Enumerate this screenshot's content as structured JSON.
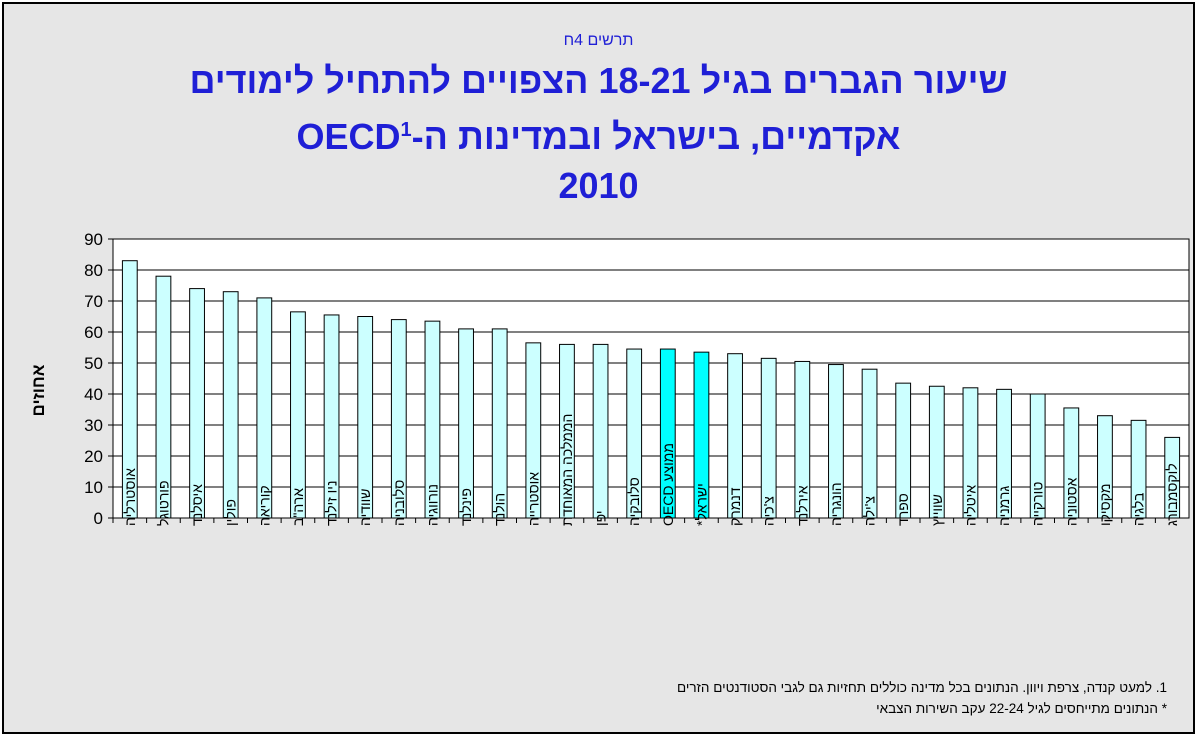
{
  "figure_label": "תרשים 4ח",
  "title_line1": "שיעור הגברים בגיל 18-21 הצפויים להתחיל לימודים",
  "title_line2": "אקדמיים, בישראל ובמדינות ה-OECD",
  "title_sup": "1",
  "title_line3": "2010",
  "note1": "1. למעט קנדה, צרפת ויוון.  הנתונים בכל מדינה כוללים תחזיות גם לגבי הסטודנטים הזרים",
  "note2": "* הנתונים מתייחסים לגיל  22-24 עקב השירות הצבאי",
  "colors": {
    "bar_default": "#ccffff",
    "bar_highlight": "#00ffff",
    "bar_stroke": "#000000",
    "plot_bg": "#ffffff",
    "title": "#1f1fd6"
  },
  "chart_data": {
    "type": "bar",
    "title": "שיעור הגברים בגיל 18-21 הצפויים להתחיל לימודים אקדמיים, בישראל ובמדינות ה-OECD 2010",
    "xlabel": "",
    "ylabel": "אחוזים",
    "ylim": [
      0,
      90
    ],
    "yticks": [
      0,
      10,
      20,
      30,
      40,
      50,
      60,
      70,
      80,
      90
    ],
    "grid": true,
    "categories": [
      "אוסטרליה",
      "פורטוגל",
      "איסלנד",
      "פולין",
      "קוריאה",
      "ארה\"ב",
      "ניו זילנד",
      "שוודיה",
      "סלובניה",
      "נורווגיה",
      "פינלנד",
      "הולנד",
      "אוסטרייה",
      "הממלכה המאוחדת",
      "יפן",
      "סלובקיה",
      "ממוצע OECD",
      "ישראל*",
      "דנמרק",
      "צ'כיה",
      "אירלנד",
      "הונגריה",
      "צ'ילה",
      "ספרד",
      "שווייץ",
      "איטליה",
      "גרמניה",
      "טורקייה",
      "אסטוניה",
      "מקסיקו",
      "בלגיה",
      "לוקסמבורג"
    ],
    "values": [
      83,
      78,
      74,
      73,
      71,
      66.5,
      65.5,
      65,
      64,
      63.5,
      61,
      61,
      56.5,
      56,
      56,
      54.5,
      54.5,
      53.5,
      53,
      51.5,
      50.5,
      49.5,
      48,
      43.5,
      42.5,
      42,
      41.5,
      40,
      35.5,
      33,
      31.5,
      26
    ],
    "highlight": [
      "ממוצע OECD",
      "ישראל*"
    ]
  }
}
